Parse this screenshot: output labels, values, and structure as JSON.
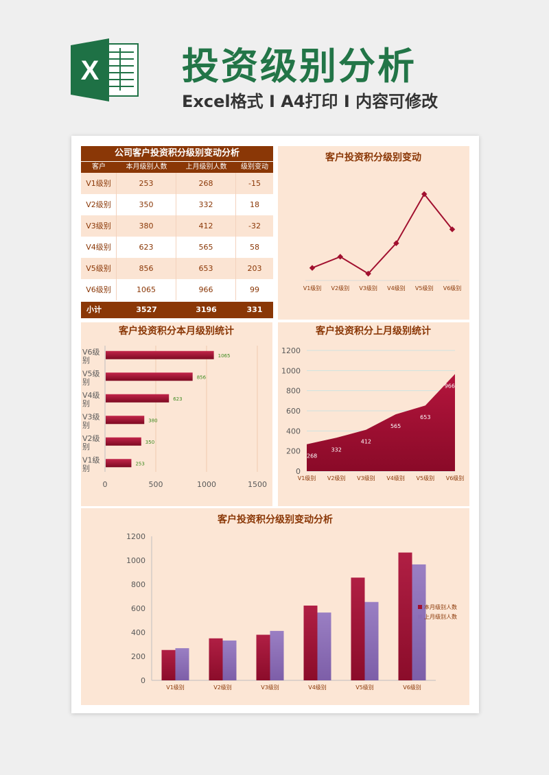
{
  "header": {
    "title": "投资级别分析",
    "subtitle": "Excel格式 I A4打印 I 内容可修改",
    "logo_letter": "X",
    "logo_color": "#1e7145",
    "title_color": "#227547"
  },
  "colors": {
    "accent": "#8a3706",
    "bar_current": "#a1102f",
    "bar_previous": "#8b6cb5",
    "panel_bg": "#fce6d5"
  },
  "table": {
    "title": "公司客户投资积分级别变动分析",
    "headers": [
      "客户",
      "本月级别人数",
      "上月级别人数",
      "级别变动"
    ],
    "rows": [
      {
        "level": "V1级别",
        "current": "253",
        "previous": "268",
        "change": "-15"
      },
      {
        "level": "V2级别",
        "current": "350",
        "previous": "332",
        "change": "18"
      },
      {
        "level": "V3级别",
        "current": "380",
        "previous": "412",
        "change": "-32"
      },
      {
        "level": "V4级别",
        "current": "623",
        "previous": "565",
        "change": "58"
      },
      {
        "level": "V5级别",
        "current": "856",
        "previous": "653",
        "change": "203"
      },
      {
        "level": "V6级别",
        "current": "1065",
        "previous": "966",
        "change": "99"
      }
    ],
    "total": {
      "label": "小计",
      "current": "3527",
      "previous": "3196",
      "change": "331"
    }
  },
  "chart_data": [
    {
      "id": "change-line",
      "type": "line",
      "title": "客户投资积分级别变动",
      "categories": [
        "V1级别",
        "V2级别",
        "V3级别",
        "V4级别",
        "V5级别",
        "V6级别"
      ],
      "series": [
        {
          "values": [
            -15,
            18,
            -32,
            58,
            203,
            99
          ]
        }
      ]
    },
    {
      "id": "current-bar",
      "type": "bar",
      "orientation": "horizontal",
      "title": "客户投资积分本月级别统计",
      "categories": [
        "V1级别",
        "V2级别",
        "V3级别",
        "V4级别",
        "V5级别",
        "V6级别"
      ],
      "values": [
        253,
        350,
        380,
        623,
        856,
        1065
      ],
      "xlim": [
        0,
        1500
      ],
      "xticks": [
        "0",
        "500",
        "1000",
        "1500"
      ],
      "grid": true
    },
    {
      "id": "previous-area",
      "type": "area",
      "title": "客户投资积分上月级别统计",
      "categories": [
        "V1级别",
        "V2级别",
        "V3级别",
        "V4级别",
        "V5级别",
        "V6级别"
      ],
      "values": [
        268,
        332,
        412,
        565,
        653,
        966
      ],
      "ylim": [
        0,
        1200
      ],
      "yticks": [
        "0",
        "200",
        "400",
        "600",
        "800",
        "1000",
        "1200"
      ],
      "grid": true
    },
    {
      "id": "compare-bar",
      "type": "bar",
      "title": "客户投资积分级别变动分析",
      "categories": [
        "V1级别",
        "V2级别",
        "V3级别",
        "V4级别",
        "V5级别",
        "V6级别"
      ],
      "series": [
        {
          "name": "本月级别人数",
          "values": [
            253,
            350,
            380,
            623,
            856,
            1065
          ]
        },
        {
          "name": "上月级别人数",
          "values": [
            268,
            332,
            412,
            565,
            653,
            966
          ]
        }
      ],
      "ylim": [
        0,
        1200
      ],
      "yticks": [
        "0",
        "200",
        "400",
        "600",
        "800",
        "1000",
        "1200"
      ],
      "legend": "right"
    }
  ]
}
